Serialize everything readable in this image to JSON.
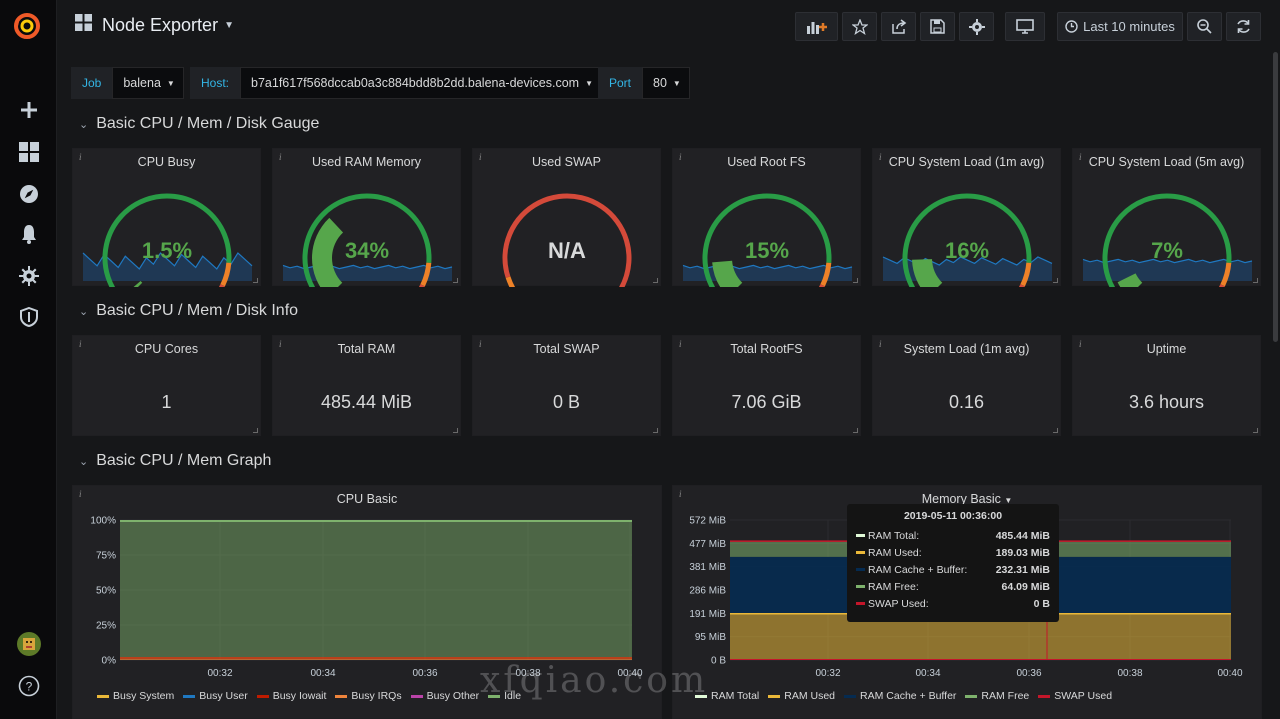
{
  "nav": {
    "dashboard_title": "Node Exporter",
    "time_range": "Last 10 minutes",
    "buttons": [
      "add-panel",
      "star",
      "share",
      "save",
      "settings",
      "cycle-view-mode",
      "zoom-out",
      "refresh"
    ]
  },
  "sidemenu": {
    "items": [
      "plus-icon",
      "dashboards-icon",
      "explore-icon",
      "alerting-icon",
      "configuration-icon",
      "server-admin-icon",
      "avatar",
      "help-icon"
    ]
  },
  "variables": {
    "job": {
      "label": "Job",
      "value": "balena"
    },
    "host": {
      "label": "Host:",
      "value": "b7a1f617f568dccab0a3c884bdd8b2dd.balena-devices.com"
    },
    "port": {
      "label": "Port",
      "value": "80"
    }
  },
  "rows": [
    {
      "title": "Basic CPU / Mem / Disk Gauge"
    },
    {
      "title": "Basic CPU / Mem / Disk Info"
    },
    {
      "title": "Basic CPU / Mem Graph"
    }
  ],
  "gauges": [
    {
      "title": "CPU Busy",
      "value": "1.5%",
      "percent": 1.5
    },
    {
      "title": "Used RAM Memory",
      "value": "34%",
      "percent": 34
    },
    {
      "title": "Used SWAP",
      "value": "N/A",
      "percent": null
    },
    {
      "title": "Used Root FS",
      "value": "15%",
      "percent": 15
    },
    {
      "title": "CPU System Load (1m avg)",
      "value": "16%",
      "percent": 16
    },
    {
      "title": "CPU System Load (5m avg)",
      "value": "7%",
      "percent": 7
    }
  ],
  "stats": [
    {
      "title": "CPU Cores",
      "value": "1"
    },
    {
      "title": "Total RAM",
      "value": "485.44 MiB"
    },
    {
      "title": "Total SWAP",
      "value": "0 B"
    },
    {
      "title": "Total RootFS",
      "value": "7.06 GiB"
    },
    {
      "title": "System Load (1m avg)",
      "value": "0.16"
    },
    {
      "title": "Uptime",
      "value": "3.6 hours"
    }
  ],
  "cpu_graph": {
    "title": "CPU Basic",
    "yticks": [
      "100%",
      "75%",
      "50%",
      "25%",
      "0%"
    ],
    "xticks": [
      "00:32",
      "00:34",
      "00:36",
      "00:38",
      "00:40"
    ],
    "legend": [
      {
        "name": "Busy System",
        "color": "#eab839"
      },
      {
        "name": "Busy User",
        "color": "#1f78c1"
      },
      {
        "name": "Busy Iowait",
        "color": "#bf1b00"
      },
      {
        "name": "Busy IRQs",
        "color": "#ef843c"
      },
      {
        "name": "Busy Other",
        "color": "#ba43a9"
      },
      {
        "name": "Idle",
        "color": "#7eb26d"
      }
    ]
  },
  "mem_graph": {
    "title": "Memory Basic",
    "yticks": [
      "572 MiB",
      "477 MiB",
      "381 MiB",
      "286 MiB",
      "191 MiB",
      "95 MiB",
      "0 B"
    ],
    "xticks": [
      "00:32",
      "00:34",
      "00:36",
      "00:38",
      "00:40"
    ],
    "legend": [
      {
        "name": "RAM Total",
        "color": "#e0f9d7"
      },
      {
        "name": "RAM Used",
        "color": "#eab839"
      },
      {
        "name": "RAM Cache + Buffer",
        "color": "#052b51"
      },
      {
        "name": "RAM Free",
        "color": "#7eb26d"
      },
      {
        "name": "SWAP Used",
        "color": "#c4162a"
      }
    ]
  },
  "tooltip": {
    "time": "2019-05-11 00:36:00",
    "rows": [
      {
        "name": "RAM Total:",
        "value": "485.44 MiB",
        "color": "#e0f9d7"
      },
      {
        "name": "RAM Used:",
        "value": "189.03 MiB",
        "color": "#eab839"
      },
      {
        "name": "RAM Cache + Buffer:",
        "value": "232.31 MiB",
        "color": "#052b51"
      },
      {
        "name": "RAM Free:",
        "value": "64.09 MiB",
        "color": "#7eb26d"
      },
      {
        "name": "SWAP Used:",
        "value": "0 B",
        "color": "#c4162a"
      }
    ]
  },
  "watermark": "xfqiao.com",
  "colors": {
    "accent": "#33b5e5",
    "gauge_green": "#299c46",
    "gauge_fill": "#56a64b",
    "threshold_orange": "#ed8128",
    "threshold_red": "#d44a3a",
    "spark_fill": "#1f3b5a",
    "spark_line": "#1f78c1"
  }
}
